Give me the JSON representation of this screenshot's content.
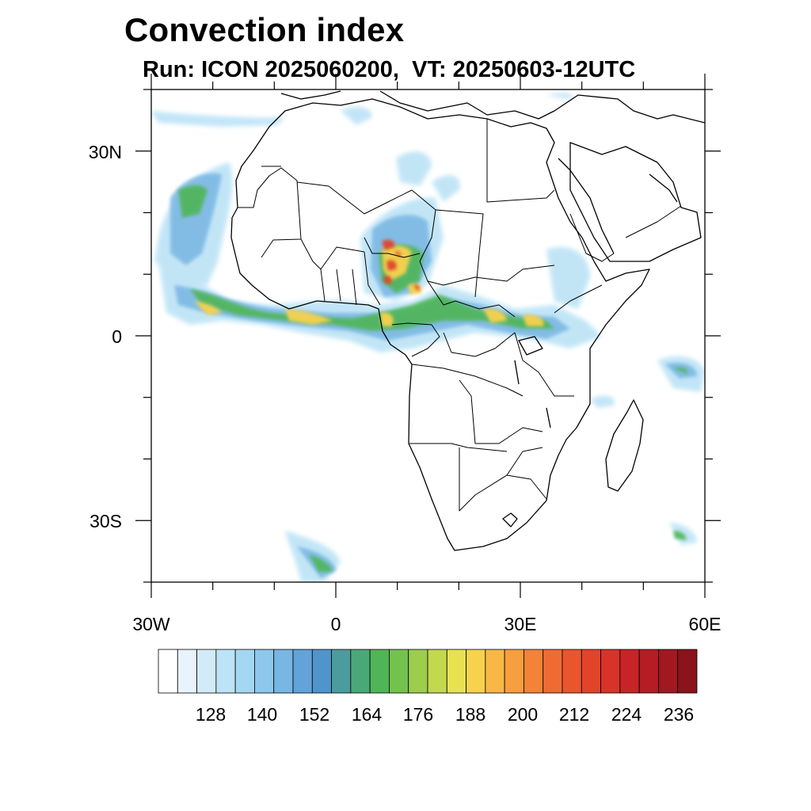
{
  "title": "Convection index",
  "subtitle": "Run: ICON 2025060200,  VT: 20250603-12UTC",
  "lat_labels": [
    "30N",
    "0",
    "30S"
  ],
  "lon_labels": [
    "30W",
    "0",
    "30E",
    "60E"
  ],
  "map_extent": {
    "lon_min": -30,
    "lon_max": 60,
    "lat_min": -40,
    "lat_max": 40
  },
  "colorbar": {
    "levels": [
      120,
      124,
      128,
      132,
      136,
      140,
      144,
      148,
      152,
      156,
      160,
      164,
      168,
      172,
      176,
      180,
      184,
      188,
      192,
      196,
      200,
      204,
      208,
      212,
      216,
      220,
      224,
      228,
      232,
      236,
      240
    ],
    "tick_labels": [
      "128",
      "140",
      "152",
      "164",
      "176",
      "188",
      "200",
      "212",
      "224",
      "236"
    ],
    "colors": [
      "#ffffff",
      "#e8f4fb",
      "#d2ebf8",
      "#bce3f6",
      "#a4d8f2",
      "#8dc8ec",
      "#78b6e3",
      "#62a3da",
      "#5094cc",
      "#4c9b9e",
      "#4aa878",
      "#50b556",
      "#74c24e",
      "#9ccd4c",
      "#c2d84d",
      "#e8e251",
      "#f7d24d",
      "#f8b845",
      "#f79e3e",
      "#f48238",
      "#f06b32",
      "#ea552e",
      "#e3432b",
      "#d93329",
      "#c82427",
      "#b61c24",
      "#a11820",
      "#8b131b"
    ]
  }
}
